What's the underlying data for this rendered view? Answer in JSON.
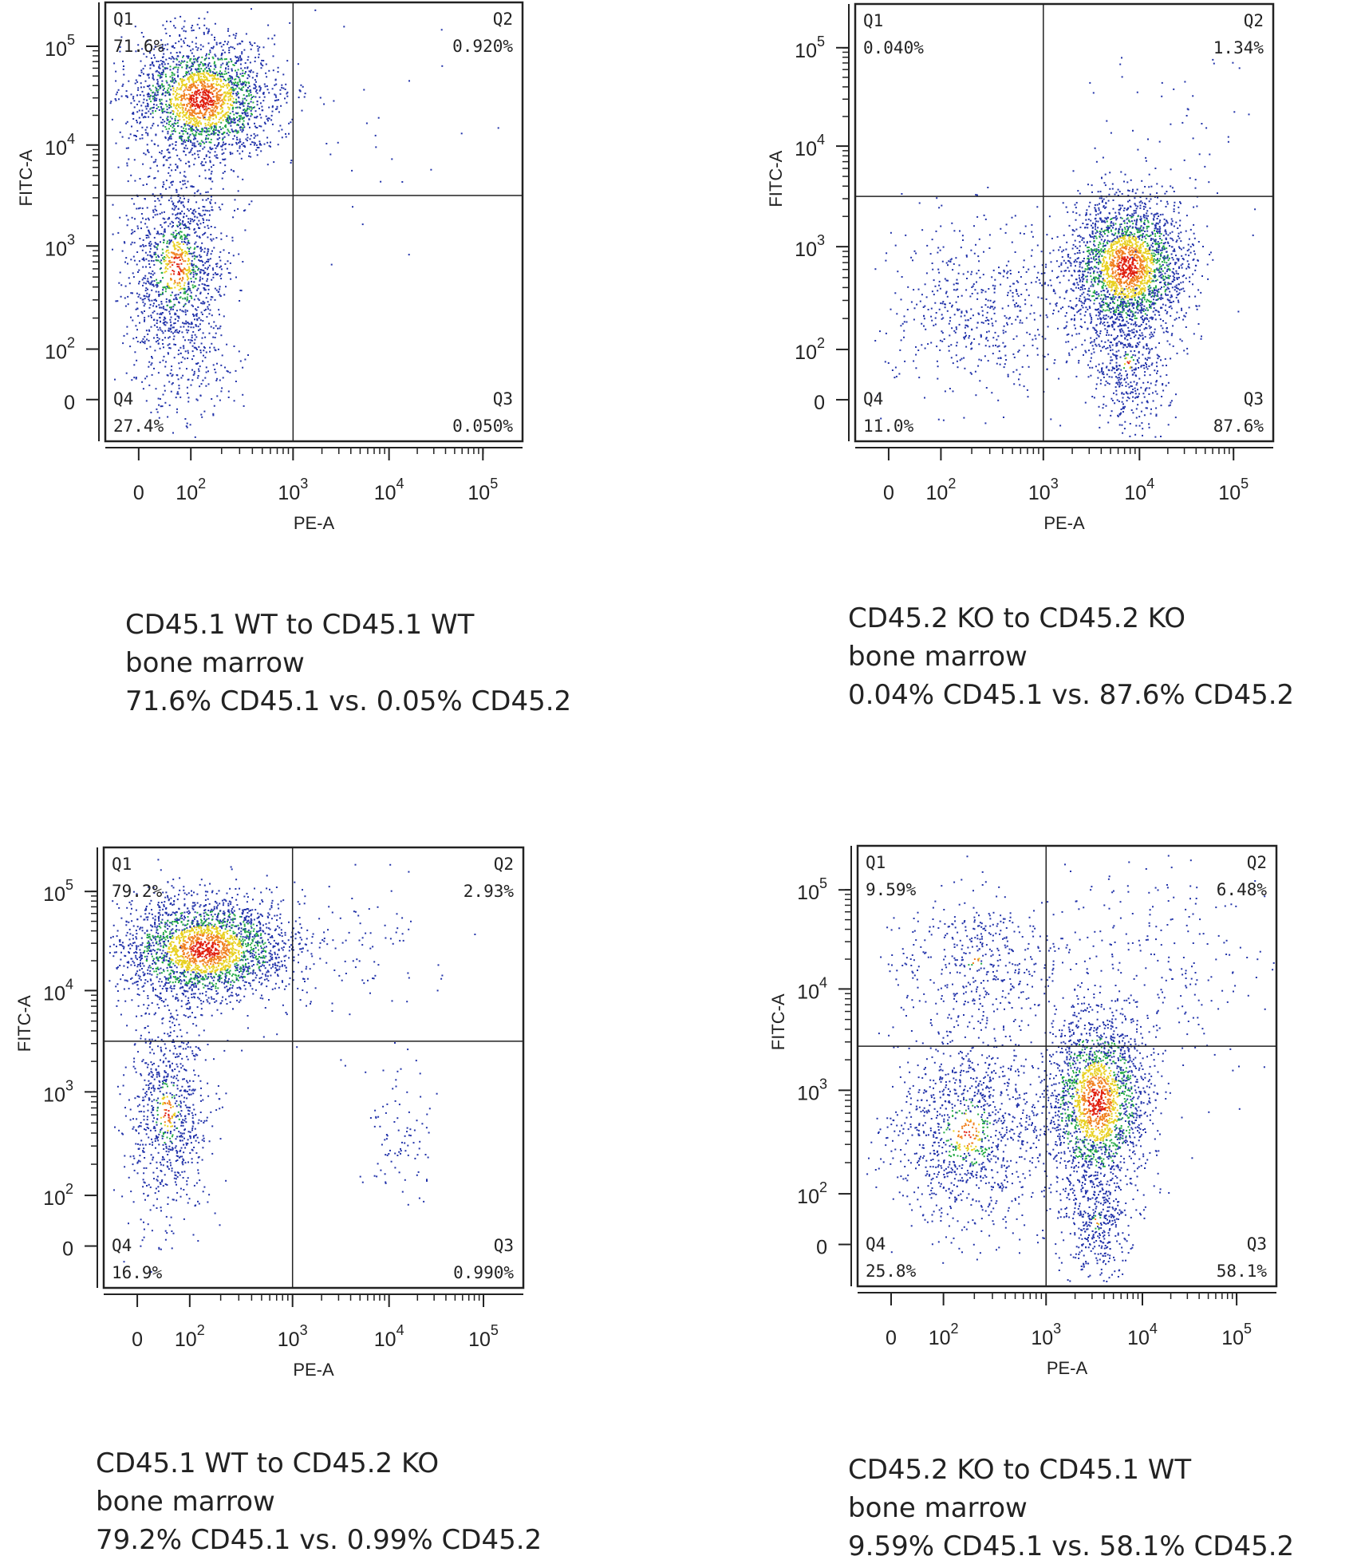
{
  "chart_data": [
    {
      "type": "scatter",
      "xlabel": "PE-A",
      "ylabel": "FITC-A",
      "x_scale": "biexponential",
      "y_scale": "biexponential",
      "x_ticks": [
        "0",
        "10^2",
        "10^3",
        "10^4",
        "10^5"
      ],
      "y_ticks": [
        "0",
        "10^2",
        "10^3",
        "10^4",
        "10^5"
      ],
      "quadrants": {
        "Q1": "71.6%",
        "Q2": "0.920%",
        "Q3": "0.050%",
        "Q4": "27.4%"
      },
      "caption": [
        "CD45.1 WT to CD45.1 WT",
        "bone marrow",
        "71.6% CD45.1 vs. 0.05% CD45.2"
      ]
    },
    {
      "type": "scatter",
      "xlabel": "PE-A",
      "ylabel": "FITC-A",
      "x_scale": "biexponential",
      "y_scale": "biexponential",
      "x_ticks": [
        "0",
        "10^2",
        "10^3",
        "10^4",
        "10^5"
      ],
      "y_ticks": [
        "0",
        "10^2",
        "10^3",
        "10^4",
        "10^5"
      ],
      "quadrants": {
        "Q1": "0.040%",
        "Q2": "1.34%",
        "Q3": "87.6%",
        "Q4": "11.0%"
      },
      "caption": [
        "CD45.2 KO to CD45.2 KO",
        "bone marrow",
        "0.04% CD45.1 vs. 87.6% CD45.2"
      ]
    },
    {
      "type": "scatter",
      "xlabel": "PE-A",
      "ylabel": "FITC-A",
      "x_scale": "biexponential",
      "y_scale": "biexponential",
      "x_ticks": [
        "0",
        "10^2",
        "10^3",
        "10^4",
        "10^5"
      ],
      "y_ticks": [
        "0",
        "10^2",
        "10^3",
        "10^4",
        "10^5"
      ],
      "quadrants": {
        "Q1": "79.2%",
        "Q2": "2.93%",
        "Q3": "0.990%",
        "Q4": "16.9%"
      },
      "caption": [
        "CD45.1 WT to CD45.2 KO",
        "bone marrow",
        "79.2% CD45.1 vs. 0.99% CD45.2"
      ]
    },
    {
      "type": "scatter",
      "xlabel": "PE-A",
      "ylabel": "FITC-A",
      "x_scale": "biexponential",
      "y_scale": "biexponential",
      "x_ticks": [
        "0",
        "10^2",
        "10^3",
        "10^4",
        "10^5"
      ],
      "y_ticks": [
        "0",
        "10^2",
        "10^3",
        "10^4",
        "10^5"
      ],
      "quadrants": {
        "Q1": "9.59%",
        "Q2": "6.48%",
        "Q3": "58.1%",
        "Q4": "25.8%"
      },
      "caption": [
        "CD45.2 KO to CD45.1 WT",
        "bone marrow",
        "9.59% CD45.1 vs. 58.1% CD45.2"
      ]
    }
  ],
  "density_colors": [
    "#2233aa",
    "#22aa44",
    "#e8d020",
    "#f08020",
    "#e02010"
  ]
}
